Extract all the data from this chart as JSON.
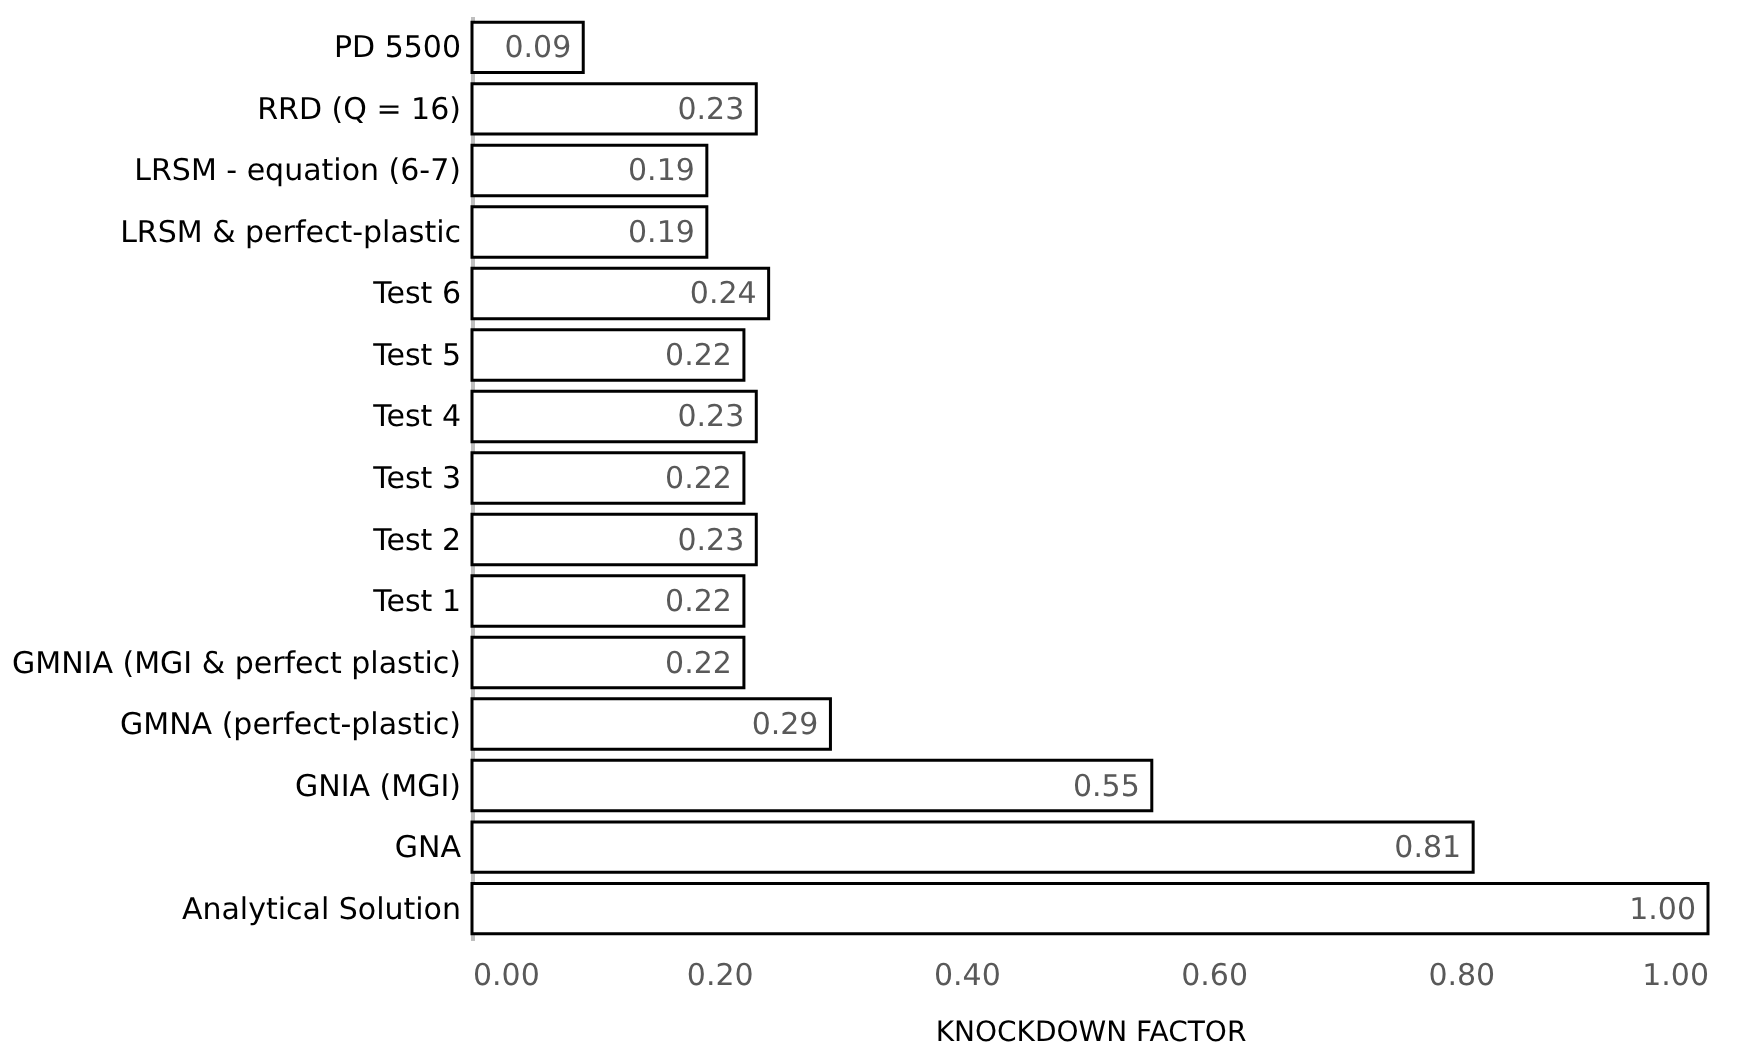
{
  "chart_data": {
    "type": "bar",
    "orientation": "horizontal",
    "xlabel": "KNOCKDOWN FACTOR",
    "categories": [
      "PD 5500",
      "RRD (Q = 16)",
      "LRSM - equation (6-7)",
      "LRSM & perfect-plastic",
      "Test 6",
      "Test 5",
      "Test 4",
      "Test 3",
      "Test 2",
      "Test 1",
      "GMNIA (MGI & perfect plastic)",
      "GMNA (perfect-plastic)",
      "GNIA (MGI)",
      "GNA",
      "Analytical Solution"
    ],
    "values": [
      0.09,
      0.23,
      0.19,
      0.19,
      0.24,
      0.22,
      0.23,
      0.22,
      0.23,
      0.22,
      0.22,
      0.29,
      0.55,
      0.81,
      1.0
    ],
    "value_labels": [
      "0.09",
      "0.23",
      "0.19",
      "0.19",
      "0.24",
      "0.22",
      "0.23",
      "0.22",
      "0.23",
      "0.22",
      "0.22",
      "0.29",
      "0.55",
      "0.81",
      "1.00"
    ],
    "color": "#ffffff",
    "xlim": [
      0,
      1
    ],
    "xticks": [
      {
        "value": 0,
        "label": "0.00"
      },
      {
        "value": 0.2,
        "label": "0.20"
      },
      {
        "value": 0.4,
        "label": "0.40"
      },
      {
        "value": 0.6,
        "label": "0.60"
      },
      {
        "value": 0.8,
        "label": "0.80"
      },
      {
        "value": 1,
        "label": "1.00"
      }
    ],
    "grid": false
  }
}
